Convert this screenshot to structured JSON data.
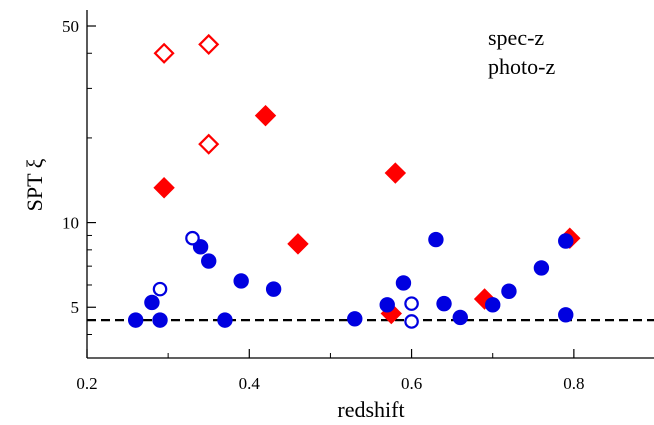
{
  "chart_data": {
    "type": "scatter",
    "xlabel": "redshift",
    "ylabel": "SPT ξ",
    "xlim": [
      0.2,
      0.9
    ],
    "ylim": [
      3.3,
      57
    ],
    "yscale": "log",
    "grid": false,
    "legend_placement": "top-right",
    "x_ticks": [
      0.2,
      0.4,
      0.6,
      0.8
    ],
    "x_tick_labels": [
      "0.2",
      "0.4",
      "0.6",
      "0.8"
    ],
    "y_ticks": [
      5,
      10,
      50
    ],
    "y_tick_labels": [
      "5",
      "10",
      "50"
    ],
    "reference_line": {
      "y": 4.5,
      "style": "dashed",
      "color": "#000000"
    },
    "series": [
      {
        "name": "spec-z",
        "color": "#ff0000",
        "marker": "diamond",
        "filled": [
          {
            "x": 0.295,
            "y": 13.3
          },
          {
            "x": 0.42,
            "y": 24.0
          },
          {
            "x": 0.46,
            "y": 8.4
          },
          {
            "x": 0.575,
            "y": 4.75
          },
          {
            "x": 0.58,
            "y": 15.0
          },
          {
            "x": 0.69,
            "y": 5.35
          },
          {
            "x": 0.795,
            "y": 8.8
          }
        ],
        "open": [
          {
            "x": 0.295,
            "y": 40.0
          },
          {
            "x": 0.35,
            "y": 43.0
          },
          {
            "x": 0.35,
            "y": 19.0
          }
        ]
      },
      {
        "name": "photo-z",
        "color": "#0000e0",
        "marker": "circle",
        "filled": [
          {
            "x": 0.26,
            "y": 4.5
          },
          {
            "x": 0.28,
            "y": 5.2
          },
          {
            "x": 0.29,
            "y": 4.5
          },
          {
            "x": 0.34,
            "y": 8.2
          },
          {
            "x": 0.35,
            "y": 7.3
          },
          {
            "x": 0.37,
            "y": 4.5
          },
          {
            "x": 0.39,
            "y": 6.2
          },
          {
            "x": 0.43,
            "y": 5.8
          },
          {
            "x": 0.53,
            "y": 4.55
          },
          {
            "x": 0.57,
            "y": 5.1
          },
          {
            "x": 0.59,
            "y": 6.1
          },
          {
            "x": 0.63,
            "y": 8.7
          },
          {
            "x": 0.64,
            "y": 5.15
          },
          {
            "x": 0.66,
            "y": 4.6
          },
          {
            "x": 0.7,
            "y": 5.1
          },
          {
            "x": 0.72,
            "y": 5.7
          },
          {
            "x": 0.76,
            "y": 6.9
          },
          {
            "x": 0.79,
            "y": 8.6
          },
          {
            "x": 0.79,
            "y": 4.7
          }
        ],
        "open": [
          {
            "x": 0.29,
            "y": 5.8
          },
          {
            "x": 0.33,
            "y": 8.8
          },
          {
            "x": 0.6,
            "y": 5.15
          },
          {
            "x": 0.6,
            "y": 4.45
          }
        ]
      }
    ]
  }
}
